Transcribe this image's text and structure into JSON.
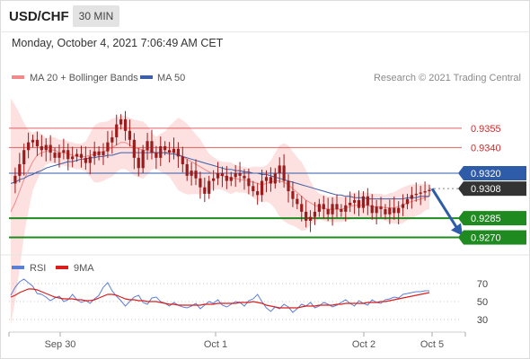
{
  "header": {
    "pair": "USD/CHF",
    "timeframe": "30 MIN",
    "datetime": "Monday, October 4, 2021 7:06:49 AM CET"
  },
  "legend": {
    "ma20_label": "MA 20 + Bollinger Bands",
    "ma50_label": "MA 50",
    "copyright": "Research © 2021 Trading Central"
  },
  "rsi_legend": {
    "rsi_label": "RSI",
    "ma_label": "9MA"
  },
  "colors": {
    "ma20": "#f28a8a",
    "bollinger_fill": "#fde0e0",
    "ma50": "#3b5fa8",
    "candle": "#9b1c1c",
    "resistance": "#e06060",
    "pivot": "#2e5ca8",
    "support": "#1f8a1f",
    "current": "#333333",
    "arrow": "#2e5ca8",
    "rsi": "#5b7fd6",
    "rsi_ma": "#d91e1e"
  },
  "chart_data": [
    {
      "type": "candlestick",
      "title": "USD/CHF",
      "timeframe": "30 MIN",
      "ylim": [
        0.9262,
        0.9378
      ],
      "x_ticks": [
        "Sep 30",
        "Oct 1",
        "Oct 2",
        "Oct 5"
      ],
      "close_path": [
        0.9312,
        0.9318,
        0.9327,
        0.9338,
        0.9344,
        0.9346,
        0.9341,
        0.9338,
        0.9342,
        0.9336,
        0.9332,
        0.9336,
        0.9338,
        0.9331,
        0.9333,
        0.9335,
        0.9332,
        0.9328,
        0.9333,
        0.9337,
        0.9334,
        0.9337,
        0.9344,
        0.9348,
        0.9358,
        0.9362,
        0.9353,
        0.9346,
        0.9332,
        0.9324,
        0.9338,
        0.9345,
        0.9336,
        0.9332,
        0.9341,
        0.9338,
        0.9336,
        0.9339,
        0.9333,
        0.9327,
        0.9318,
        0.9322,
        0.9316,
        0.9309,
        0.9304,
        0.9314,
        0.9316,
        0.932,
        0.9318,
        0.9314,
        0.9317,
        0.932,
        0.9318,
        0.9316,
        0.931,
        0.9306,
        0.9303,
        0.9314,
        0.9317,
        0.9312,
        0.932,
        0.9326,
        0.9314,
        0.9306,
        0.93,
        0.9296,
        0.929,
        0.9283,
        0.9286,
        0.929,
        0.9296,
        0.9292,
        0.9288,
        0.9296,
        0.9292,
        0.929,
        0.9295,
        0.9297,
        0.9299,
        0.9293,
        0.9302,
        0.9295,
        0.9289,
        0.9294,
        0.9292,
        0.9288,
        0.9293,
        0.9289,
        0.9293,
        0.9296,
        0.93,
        0.9303,
        0.9304,
        0.9305,
        0.9306,
        0.9307
      ],
      "series": [
        {
          "name": "MA 20",
          "values": [
            0.929,
            0.9297,
            0.9306,
            0.9315,
            0.9322,
            0.9329,
            0.9334,
            0.9336,
            0.9337,
            0.9338,
            0.9338,
            0.9336,
            0.9336,
            0.9335,
            0.9334,
            0.9333,
            0.9333,
            0.9333,
            0.9334,
            0.9335,
            0.9336,
            0.9337,
            0.9338,
            0.934,
            0.9342,
            0.9344,
            0.9344,
            0.9342,
            0.934,
            0.9339,
            0.9338,
            0.9338,
            0.9337,
            0.9336,
            0.9336,
            0.9336,
            0.9337,
            0.9336,
            0.9335,
            0.9333,
            0.9331,
            0.9329,
            0.9327,
            0.9325,
            0.9323,
            0.9321,
            0.932,
            0.9319,
            0.9318,
            0.9317,
            0.9316,
            0.9316,
            0.9315,
            0.9315,
            0.9314,
            0.9313,
            0.9312,
            0.9311,
            0.9312,
            0.9313,
            0.9314,
            0.9314,
            0.9313,
            0.9311,
            0.9308,
            0.9305,
            0.9302,
            0.9299,
            0.9297,
            0.9295,
            0.9294,
            0.9293,
            0.9292,
            0.9292,
            0.9292,
            0.9292,
            0.9293,
            0.9294,
            0.9295,
            0.9295,
            0.9295,
            0.9295,
            0.9294,
            0.9294,
            0.9294,
            0.9293,
            0.9293,
            0.9293,
            0.9294,
            0.9295,
            0.9297,
            0.9298,
            0.9299,
            0.93,
            0.9301,
            0.9302
          ]
        },
        {
          "name": "MA 50",
          "values": [
            0.9312,
            0.9313,
            0.9315,
            0.9316,
            0.9318,
            0.9319,
            0.9321,
            0.9322,
            0.9324,
            0.9325,
            0.9326,
            0.9327,
            0.9328,
            0.9329,
            0.9329,
            0.933,
            0.9331,
            0.9331,
            0.9332,
            0.9332,
            0.9333,
            0.9333,
            0.9334,
            0.9334,
            0.9335,
            0.9336,
            0.9336,
            0.9336,
            0.9336,
            0.9336,
            0.9336,
            0.9336,
            0.9336,
            0.9336,
            0.9336,
            0.9336,
            0.9335,
            0.9335,
            0.9334,
            0.9333,
            0.9332,
            0.9331,
            0.933,
            0.9329,
            0.9328,
            0.9327,
            0.9326,
            0.9325,
            0.9324,
            0.9323,
            0.9323,
            0.9322,
            0.9322,
            0.9321,
            0.9321,
            0.932,
            0.932,
            0.9319,
            0.9319,
            0.9318,
            0.9317,
            0.9316,
            0.9315,
            0.9314,
            0.9313,
            0.9312,
            0.9311,
            0.931,
            0.9309,
            0.9308,
            0.9307,
            0.9306,
            0.9305,
            0.9304,
            0.9303,
            0.9303,
            0.9302,
            0.9302,
            0.9301,
            0.9301,
            0.9301,
            0.93,
            0.93,
            0.93,
            0.93,
            0.93,
            0.93,
            0.93,
            0.93,
            0.93,
            0.9301,
            0.9301,
            0.9301,
            0.9302,
            0.9302,
            0.9302
          ]
        }
      ],
      "levels": [
        {
          "label": "0.9355",
          "value": 0.9355,
          "kind": "resistance"
        },
        {
          "label": "0.9340",
          "value": 0.934,
          "kind": "resistance"
        },
        {
          "label": "0.9320",
          "value": 0.932,
          "kind": "pivot"
        },
        {
          "label": "0.9308",
          "value": 0.9308,
          "kind": "current"
        },
        {
          "label": "0.9285",
          "value": 0.9285,
          "kind": "support"
        },
        {
          "label": "0.9270",
          "value": 0.927,
          "kind": "support"
        }
      ],
      "projection": {
        "from": 0.9308,
        "to": 0.927
      }
    },
    {
      "type": "line",
      "title": "RSI",
      "ylim": [
        20,
        80
      ],
      "y_ticks": [
        70,
        50,
        30
      ],
      "series": [
        {
          "name": "RSI",
          "values": [
            57,
            66,
            72,
            75,
            71,
            67,
            59,
            58,
            55,
            51,
            54,
            56,
            50,
            52,
            58,
            52,
            49,
            51,
            48,
            53,
            57,
            66,
            71,
            62,
            56,
            51,
            45,
            50,
            55,
            57,
            49,
            47,
            54,
            55,
            50,
            48,
            45,
            49,
            46,
            44,
            43,
            45,
            48,
            42,
            46,
            50,
            48,
            52,
            46,
            44,
            47,
            50,
            49,
            45,
            51,
            53,
            58,
            50,
            43,
            39,
            44,
            42,
            47,
            44,
            38,
            42,
            47,
            45,
            49,
            43,
            45,
            49,
            47,
            44,
            46,
            49,
            52,
            48,
            45,
            51,
            48,
            46,
            52,
            49,
            48,
            52,
            53,
            55,
            54,
            58,
            59,
            60,
            61,
            61,
            62,
            62
          ]
        },
        {
          "name": "9MA",
          "values": [
            55,
            57,
            60,
            62,
            64,
            64,
            63,
            61,
            59,
            57,
            55,
            54,
            53,
            53,
            53,
            52,
            52,
            51,
            51,
            52,
            54,
            56,
            58,
            58,
            57,
            55,
            53,
            52,
            52,
            51,
            51,
            50,
            50,
            50,
            49,
            48,
            47,
            47,
            46,
            46,
            46,
            46,
            46,
            46,
            47,
            47,
            47,
            48,
            48,
            48,
            48,
            48,
            49,
            49,
            49,
            50,
            49,
            48,
            46,
            45,
            44,
            43,
            43,
            43,
            43,
            43,
            44,
            45,
            45,
            45,
            46,
            46,
            46,
            46,
            47,
            47,
            48,
            48,
            48,
            48,
            48,
            49,
            49,
            49,
            50,
            50,
            51,
            52,
            53,
            54,
            55,
            56,
            57,
            58,
            59,
            60
          ]
        }
      ]
    }
  ]
}
